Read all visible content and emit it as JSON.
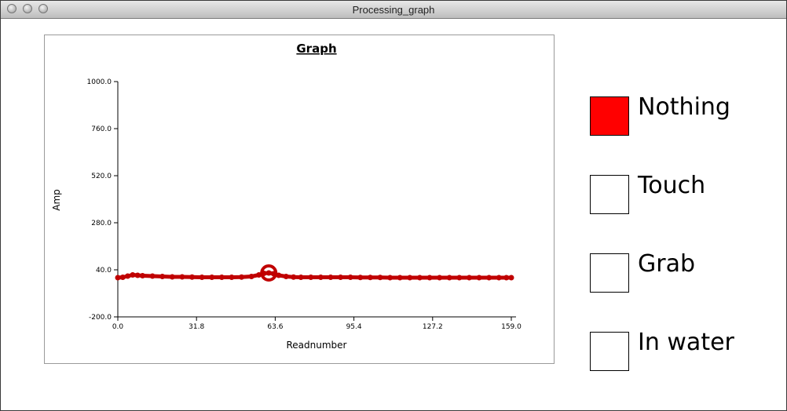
{
  "window": {
    "title": "Processing_graph"
  },
  "chart_data": {
    "type": "line",
    "title": "Graph",
    "xlabel": "Readnumber",
    "ylabel": "Amp",
    "xlim": [
      0,
      159
    ],
    "ylim": [
      -200,
      1000
    ],
    "x_ticks": [
      "0.0",
      "31.8",
      "63.6",
      "95.4",
      "127.2",
      "159.0"
    ],
    "y_ticks": [
      "1000.0",
      "760.0",
      "520.0",
      "280.0",
      "40.0",
      "-200.0"
    ],
    "x_tick_values": [
      0,
      31.8,
      63.6,
      95.4,
      127.2,
      159
    ],
    "y_tick_values": [
      1000,
      760,
      520,
      280,
      40,
      -200
    ],
    "series": [
      {
        "color": "#c00000",
        "points": [
          [
            0,
            0
          ],
          [
            2,
            2
          ],
          [
            4,
            8
          ],
          [
            6,
            14
          ],
          [
            8,
            12
          ],
          [
            10,
            10
          ],
          [
            14,
            8
          ],
          [
            18,
            6
          ],
          [
            22,
            4
          ],
          [
            26,
            4
          ],
          [
            30,
            3
          ],
          [
            34,
            2
          ],
          [
            38,
            2
          ],
          [
            42,
            2
          ],
          [
            46,
            2
          ],
          [
            50,
            3
          ],
          [
            54,
            6
          ],
          [
            57,
            14
          ],
          [
            59,
            22
          ],
          [
            61,
            24
          ],
          [
            63,
            20
          ],
          [
            65,
            12
          ],
          [
            68,
            6
          ],
          [
            71,
            3
          ],
          [
            74,
            2
          ],
          [
            78,
            2
          ],
          [
            82,
            2
          ],
          [
            86,
            2
          ],
          [
            90,
            2
          ],
          [
            94,
            2
          ],
          [
            98,
            1
          ],
          [
            102,
            1
          ],
          [
            106,
            1
          ],
          [
            110,
            0
          ],
          [
            114,
            0
          ],
          [
            118,
            0
          ],
          [
            122,
            0
          ],
          [
            126,
            0
          ],
          [
            130,
            0
          ],
          [
            134,
            0
          ],
          [
            138,
            0
          ],
          [
            142,
            0
          ],
          [
            146,
            0
          ],
          [
            150,
            0
          ],
          [
            154,
            0
          ],
          [
            157,
            0
          ],
          [
            159,
            0
          ]
        ]
      }
    ],
    "highlight_point": [
      61,
      24
    ]
  },
  "legend": [
    {
      "label": "Nothing",
      "fill": "#ff0000"
    },
    {
      "label": "Touch",
      "fill": "#ffffff"
    },
    {
      "label": "Grab",
      "fill": "#ffffff"
    },
    {
      "label": "In water",
      "fill": "#ffffff"
    }
  ]
}
